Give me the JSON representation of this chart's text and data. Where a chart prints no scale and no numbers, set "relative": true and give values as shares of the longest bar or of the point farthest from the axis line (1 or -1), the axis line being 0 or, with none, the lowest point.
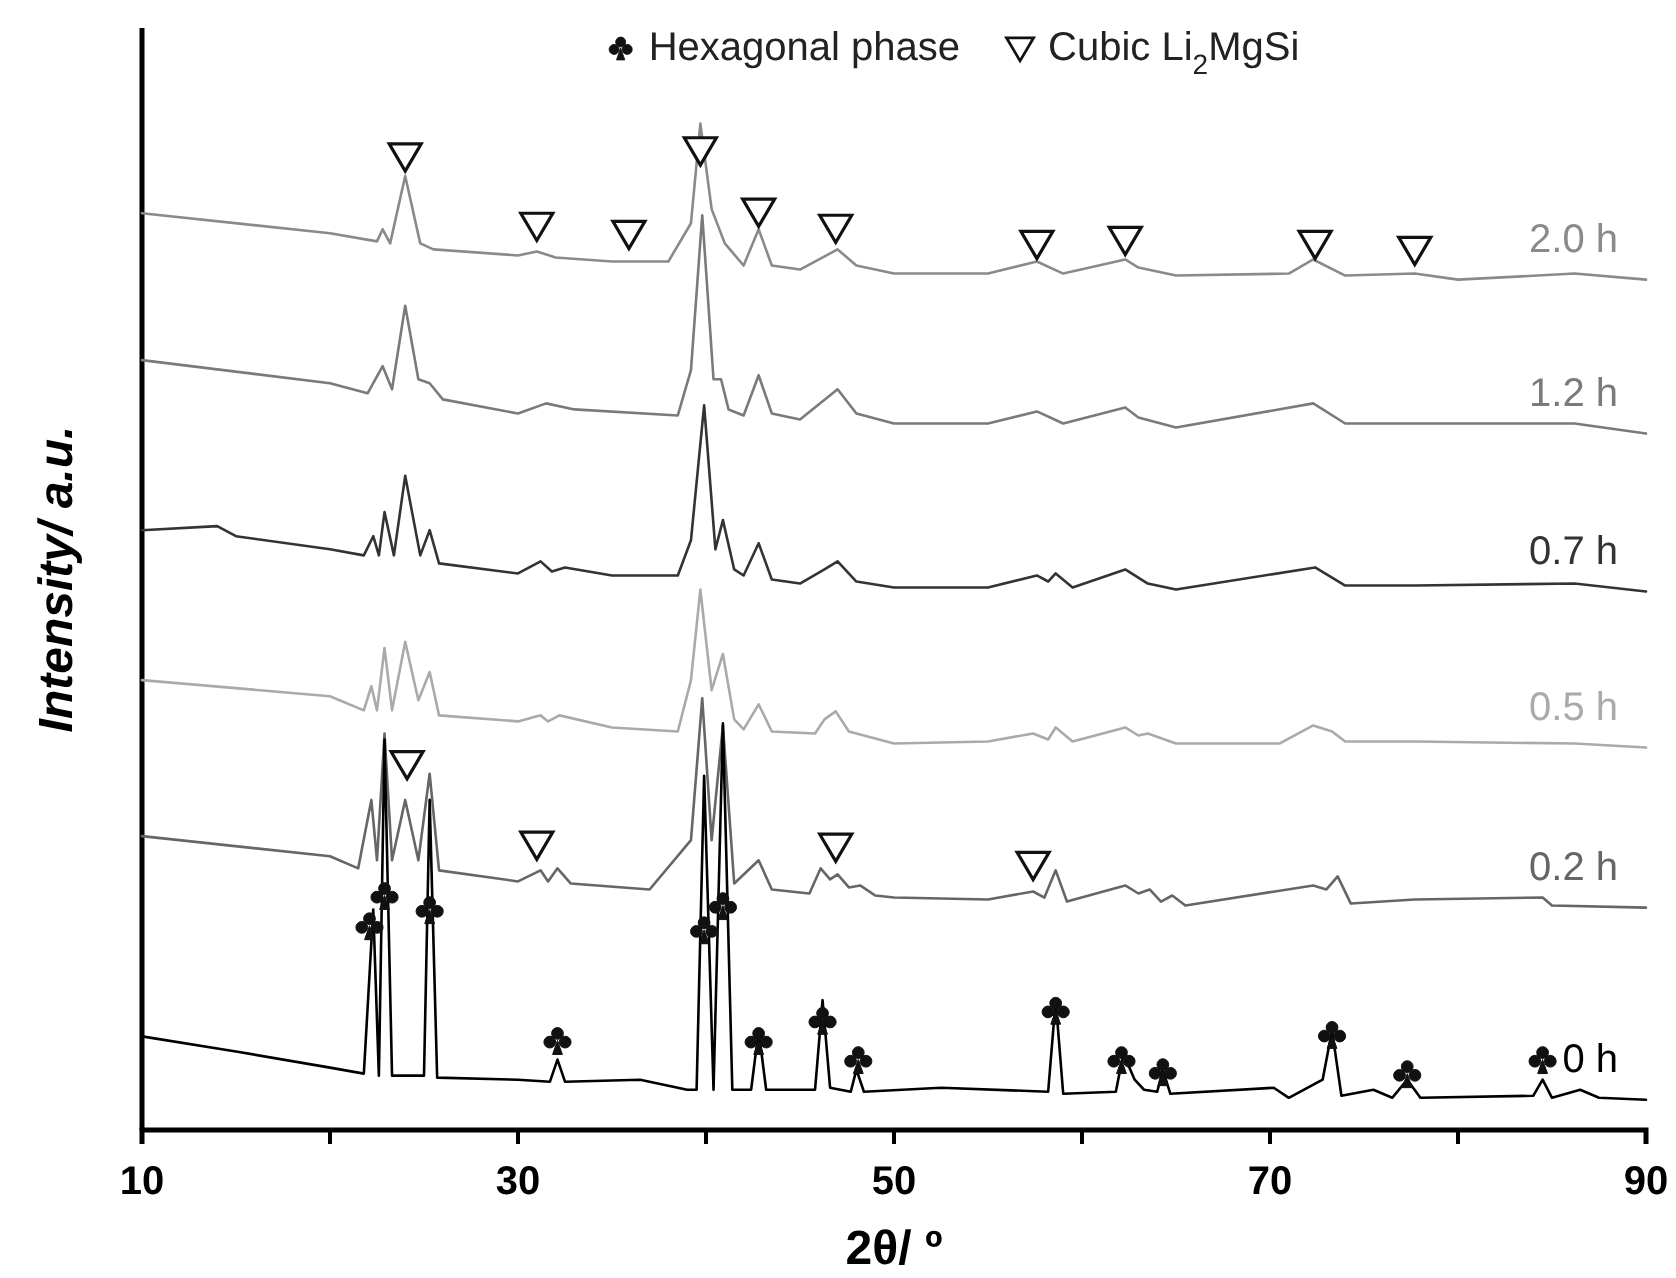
{
  "chart_data": {
    "type": "line",
    "relative": true,
    "xlabel": "2θ/ º",
    "ylabel": "Intensity/ a.u.",
    "xlim": [
      10,
      90
    ],
    "xticks": [
      10,
      {
        "value": 20,
        "label": null
      },
      30,
      {
        "value": 40,
        "label": null
      },
      50,
      {
        "value": 60,
        "label": null
      },
      70,
      {
        "value": 80,
        "label": null
      },
      90
    ],
    "legend": "top",
    "grid": false,
    "line_style": "solid",
    "series": [
      {
        "name": "2.0 h",
        "color": "#8a8a8a",
        "x": [
          10,
          20,
          22.5,
          22.8,
          23.2,
          24,
          24.8,
          25.5,
          30,
          31,
          32,
          35,
          38,
          39.2,
          39.7,
          40.3,
          41,
          42,
          42.8,
          43.5,
          45,
          47,
          48,
          50,
          55,
          57.6,
          59,
          62.3,
          63,
          65,
          71,
          72.3,
          74,
          77.7,
          80,
          86.2,
          90
        ],
        "values": [
          0.911,
          0.891,
          0.883,
          0.895,
          0.881,
          0.948,
          0.881,
          0.875,
          0.869,
          0.873,
          0.867,
          0.863,
          0.863,
          0.901,
          1,
          0.915,
          0.881,
          0.859,
          0.895,
          0.859,
          0.855,
          0.875,
          0.859,
          0.851,
          0.851,
          0.863,
          0.851,
          0.865,
          0.857,
          0.849,
          0.851,
          0.865,
          0.849,
          0.851,
          0.845,
          0.851,
          0.845
        ]
      },
      {
        "name": "1.2 h",
        "color": "#7a7a7a",
        "x": [
          10,
          20,
          22,
          22.8,
          23.3,
          24,
          24.7,
          25.3,
          26,
          30,
          31.5,
          33,
          38.5,
          39.2,
          39.8,
          40.4,
          40.8,
          41.2,
          42,
          42.8,
          43.5,
          45,
          47,
          48,
          50,
          55,
          57.6,
          59,
          62.3,
          63,
          65,
          72.3,
          74,
          77.7,
          86.2,
          90
        ],
        "values": [
          0.765,
          0.742,
          0.732,
          0.759,
          0.736,
          0.819,
          0.746,
          0.742,
          0.726,
          0.712,
          0.722,
          0.716,
          0.71,
          0.755,
          0.909,
          0.746,
          0.746,
          0.716,
          0.71,
          0.75,
          0.712,
          0.706,
          0.736,
          0.712,
          0.702,
          0.702,
          0.714,
          0.702,
          0.718,
          0.708,
          0.698,
          0.722,
          0.702,
          0.702,
          0.702,
          0.692
        ]
      },
      {
        "name": "0.7 h",
        "color": "#333333",
        "x": [
          10,
          14,
          15,
          20,
          21.8,
          22.3,
          22.6,
          22.9,
          23.4,
          24,
          24.8,
          25.3,
          25.8,
          30,
          31.2,
          31.8,
          32.5,
          35,
          38.5,
          39.2,
          39.9,
          40.5,
          40.9,
          41.5,
          42,
          42.8,
          43.5,
          45,
          46.3,
          47,
          48,
          50,
          55,
          57.6,
          58.2,
          58.6,
          59.5,
          62.3,
          63.5,
          65,
          72.4,
          74,
          77.7,
          86.2,
          90
        ],
        "values": [
          0.596,
          0.6,
          0.59,
          0.577,
          0.571,
          0.59,
          0.571,
          0.614,
          0.571,
          0.65,
          0.571,
          0.596,
          0.563,
          0.553,
          0.565,
          0.555,
          0.559,
          0.551,
          0.551,
          0.586,
          0.72,
          0.577,
          0.606,
          0.557,
          0.551,
          0.583,
          0.547,
          0.543,
          0.557,
          0.565,
          0.545,
          0.539,
          0.539,
          0.551,
          0.545,
          0.553,
          0.539,
          0.557,
          0.543,
          0.537,
          0.559,
          0.541,
          0.541,
          0.543,
          0.535
        ]
      },
      {
        "name": "0.5 h",
        "color": "#aaaaaa",
        "x": [
          10,
          20,
          21.8,
          22.2,
          22.5,
          22.9,
          23.3,
          24,
          24.7,
          25.3,
          25.8,
          30,
          31.2,
          31.6,
          32.2,
          35,
          38.5,
          39.2,
          39.7,
          40.3,
          40.9,
          41.5,
          42,
          42.8,
          43.5,
          45.8,
          46.3,
          46.9,
          47.6,
          50,
          55,
          57.4,
          58.2,
          58.6,
          59.5,
          62.3,
          63,
          63.5,
          65,
          70.5,
          72.3,
          73.3,
          74,
          77.7,
          86.2,
          90
        ],
        "values": [
          0.447,
          0.431,
          0.417,
          0.441,
          0.417,
          0.479,
          0.417,
          0.485,
          0.427,
          0.455,
          0.412,
          0.406,
          0.412,
          0.406,
          0.412,
          0.4,
          0.396,
          0.447,
          0.537,
          0.437,
          0.473,
          0.408,
          0.398,
          0.423,
          0.396,
          0.394,
          0.408,
          0.416,
          0.396,
          0.384,
          0.386,
          0.394,
          0.388,
          0.4,
          0.386,
          0.4,
          0.392,
          0.394,
          0.384,
          0.384,
          0.402,
          0.396,
          0.386,
          0.386,
          0.384,
          0.38
        ]
      },
      {
        "name": "0.2 h",
        "color": "#666666",
        "x": [
          10,
          20,
          21.5,
          22.2,
          22.5,
          22.9,
          23.3,
          24,
          24.7,
          25.3,
          25.8,
          30,
          31.2,
          31.6,
          32.1,
          32.8,
          37,
          39.2,
          39.8,
          40.3,
          40.9,
          41.5,
          42.8,
          43.5,
          45.5,
          46.1,
          46.6,
          47,
          47.6,
          48.2,
          49,
          50,
          55,
          57.4,
          58,
          58.6,
          59.2,
          62.3,
          63,
          63.6,
          64.2,
          64.8,
          65.5,
          72.3,
          73,
          73.6,
          74.3,
          77.7,
          84.5,
          85,
          90
        ],
        "values": [
          0.292,
          0.272,
          0.26,
          0.328,
          0.268,
          0.394,
          0.268,
          0.328,
          0.268,
          0.354,
          0.258,
          0.247,
          0.258,
          0.247,
          0.26,
          0.245,
          0.239,
          0.288,
          0.429,
          0.288,
          0.402,
          0.245,
          0.268,
          0.239,
          0.235,
          0.26,
          0.249,
          0.254,
          0.241,
          0.243,
          0.233,
          0.231,
          0.229,
          0.237,
          0.231,
          0.258,
          0.227,
          0.243,
          0.235,
          0.239,
          0.227,
          0.233,
          0.223,
          0.243,
          0.239,
          0.252,
          0.225,
          0.229,
          0.231,
          0.223,
          0.221
        ]
      },
      {
        "name": "0 h",
        "color": "#000000",
        "x": [
          10,
          15,
          20,
          21.8,
          22.3,
          22.6,
          22.9,
          23.3,
          25,
          25.3,
          25.7,
          30,
          31.7,
          32.1,
          32.5,
          36.5,
          39,
          39.5,
          39.9,
          40.4,
          40.9,
          41.4,
          42.4,
          42.8,
          43.2,
          45.8,
          46.2,
          46.6,
          47.7,
          48,
          48.4,
          52.5,
          58.2,
          58.6,
          59,
          61.8,
          62.2,
          62.8,
          63.3,
          64,
          64.3,
          64.7,
          70.2,
          71,
          72.8,
          73.3,
          73.8,
          75.5,
          76.5,
          77.3,
          78,
          84,
          84.5,
          85,
          86.5,
          87.5,
          90
        ],
        "values": [
          0.093,
          0.078,
          0.062,
          0.056,
          0.219,
          0.054,
          0.388,
          0.054,
          0.054,
          0.328,
          0.052,
          0.05,
          0.048,
          0.07,
          0.048,
          0.05,
          0.04,
          0.04,
          0.352,
          0.04,
          0.404,
          0.04,
          0.04,
          0.099,
          0.04,
          0.04,
          0.129,
          0.042,
          0.038,
          0.06,
          0.038,
          0.042,
          0.038,
          0.129,
          0.036,
          0.038,
          0.076,
          0.05,
          0.04,
          0.038,
          0.06,
          0.036,
          0.042,
          0.032,
          0.05,
          0.099,
          0.034,
          0.04,
          0.032,
          0.05,
          0.032,
          0.034,
          0.05,
          0.032,
          0.04,
          0.032,
          0.03
        ]
      },
      {
        "name": "Hexagonal phase",
        "type": "scatter",
        "color": "#111111",
        "x": [
          22.1,
          22.9,
          25.3,
          32.1,
          39.9,
          40.9,
          42.8,
          46.2,
          48.1,
          58.6,
          62.1,
          64.3,
          73.3,
          77.3,
          84.5
        ],
        "values": [
          0.203,
          0.233,
          0.219,
          0.089,
          0.199,
          0.223,
          0.089,
          0.109,
          0.07,
          0.119,
          0.07,
          0.058,
          0.095,
          0.056,
          0.07
        ]
      },
      {
        "name": "Cubic Li$_{2}$MgSi",
        "type": "scatter",
        "marker": "triangle",
        "color": "#111111",
        "x": [
          24,
          31,
          35.9,
          39.7,
          42.8,
          46.9,
          57.6,
          62.3,
          72.4,
          77.7,
          24.1,
          31,
          46.9,
          57.4
        ],
        "values": [
          0.968,
          0.899,
          0.891,
          0.974,
          0.913,
          0.897,
          0.881,
          0.885,
          0.881,
          0.875,
          0.364,
          0.284,
          0.282,
          0.264
        ]
      }
    ]
  }
}
